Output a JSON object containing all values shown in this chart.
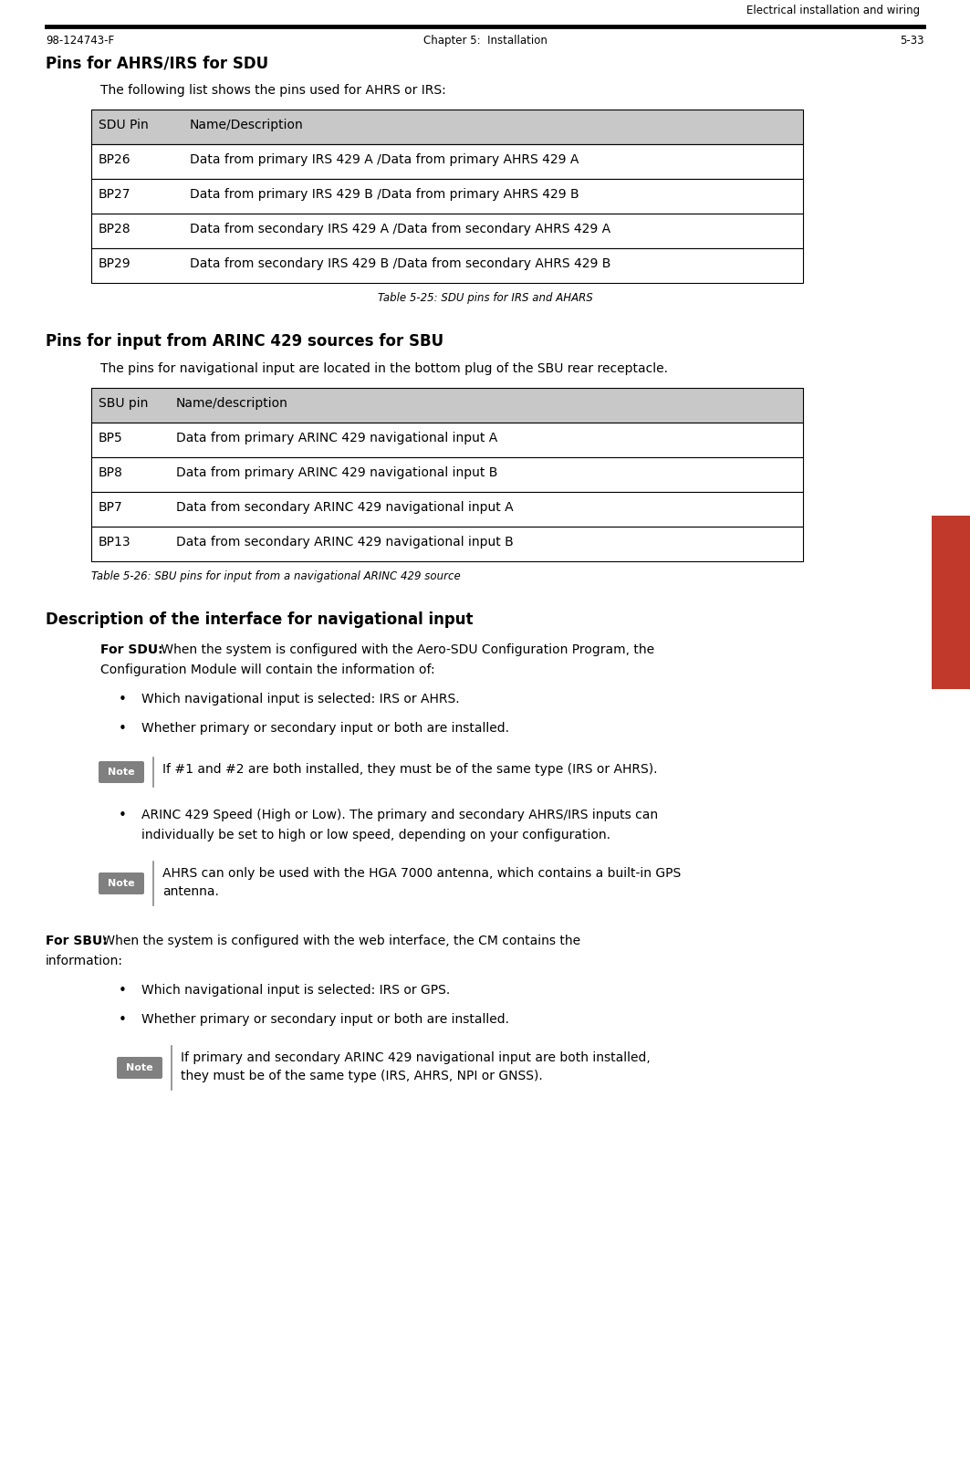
{
  "page_title_right": "Electrical installation and wiring",
  "footer_left": "98-124743-F",
  "footer_center": "Chapter 5:  Installation",
  "footer_right": "5-33",
  "section1_heading": "Pins for AHRS/IRS for SDU",
  "section1_intro": "The following list shows the pins used for AHRS or IRS:",
  "table1_header": [
    "SDU Pin",
    "Name/Description"
  ],
  "table1_rows": [
    [
      "BP26",
      "Data from primary IRS 429 A /Data from primary AHRS 429 A"
    ],
    [
      "BP27",
      "Data from primary IRS 429 B /Data from primary AHRS 429 B"
    ],
    [
      "BP28",
      "Data from secondary IRS 429 A /Data from secondary AHRS 429 A"
    ],
    [
      "BP29",
      "Data from secondary IRS 429 B /Data from secondary AHRS 429 B"
    ]
  ],
  "table1_caption": "Table 5-25: SDU pins for IRS and AHARS",
  "section2_heading": "Pins for input from ARINC 429 sources for SBU",
  "section2_intro": "The pins for navigational input are located in the bottom plug of the SBU rear receptacle.",
  "table2_header": [
    "SBU pin",
    "Name/description"
  ],
  "table2_rows": [
    [
      "BP5",
      "Data from primary ARINC 429 navigational input A"
    ],
    [
      "BP8",
      "Data from primary ARINC 429 navigational input B"
    ],
    [
      "BP7",
      "Data from secondary ARINC 429 navigational input A"
    ],
    [
      "BP13",
      "Data from secondary ARINC 429 navigational input B"
    ]
  ],
  "table2_caption": "Table 5-26: SBU pins for input from a navigational ARINC 429 source",
  "section3_heading": "Description of the interface for navigational input",
  "sdu_bold": "For SDU:",
  "sdu_line1": " When the system is configured with the Aero-SDU Configuration Program, the",
  "sdu_line2": "Configuration Module will contain the information of:",
  "sdu_bullets": [
    "Which navigational input is selected: IRS or AHRS.",
    "Whether primary or secondary input or both are installed."
  ],
  "note1_text": "If #1 and #2 are both installed, they must be of the same type (IRS or AHRS).",
  "sdu_bullet3_line1": "ARINC 429 Speed (High or Low). The primary and secondary AHRS/IRS inputs can",
  "sdu_bullet3_line2": "individually be set to high or low speed, depending on your configuration.",
  "note2_line1": "AHRS can only be used with the HGA 7000 antenna, which contains a built-in GPS",
  "note2_line2": "antenna.",
  "sbu_bold": "For SBU:",
  "sbu_line1": " When the system is configured with the web interface, the CM contains the",
  "sbu_line2": "information:",
  "sbu_bullets": [
    "Which navigational input is selected: IRS or GPS.",
    "Whether primary or secondary input or both are installed."
  ],
  "note3_line1": "If primary and secondary ARINC 429 navigational input are both installed,",
  "note3_line2": "they must be of the same type (IRS, AHRS, NPI or GNSS).",
  "header_bg": "#c8c8c8",
  "table_border": "#000000",
  "bg_color": "#ffffff",
  "sidebar_color": "#808080",
  "note_badge_bg": "#808080",
  "note_badge_color": "#ffffff",
  "note_line_color": "#888888",
  "right_sidebar_color": "#c0392b"
}
